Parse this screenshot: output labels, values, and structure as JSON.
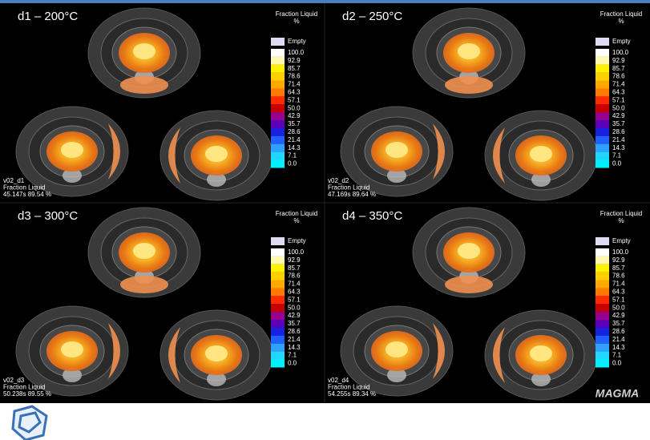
{
  "panels": [
    {
      "title": "d1 – 200°C",
      "legend_title": [
        "Fraction Liquid",
        "%"
      ],
      "scale": [
        "Empty",
        "100.0",
        "92.9",
        "85.7",
        "78.6",
        "71.4",
        "64.3",
        "57.1",
        "50.0",
        "42.9",
        "35.7",
        "28.6",
        "21.4",
        "14.3",
        "7.1",
        "0.0"
      ],
      "info": [
        "v02_d1",
        "Fraction Liquid",
        "45.147s 89.54 %"
      ]
    },
    {
      "title": "d2 – 250°C",
      "legend_title": [
        "Fraction Liquid",
        "%"
      ],
      "scale": [
        "Empty",
        "100.0",
        "92.9",
        "85.7",
        "78.6",
        "71.4",
        "64.3",
        "57.1",
        "50.0",
        "42.9",
        "35.7",
        "28.6",
        "21.4",
        "14.3",
        "7.1",
        "0.0"
      ],
      "info": [
        "v02_d2",
        "Fraction Liquid",
        "47.169s 89.64 %"
      ]
    },
    {
      "title": "d3 – 300°C",
      "legend_title": [
        "Fraction Liquid",
        "%"
      ],
      "scale": [
        "Empty",
        "100.0",
        "92.9",
        "85.7",
        "78.6",
        "71.4",
        "64.3",
        "57.1",
        "50.0",
        "42.9",
        "35.7",
        "28.6",
        "21.4",
        "14.3",
        "7.1",
        "0.0"
      ],
      "info": [
        "v02_d3",
        "Fraction Liquid",
        "50.238s 89.55 %"
      ]
    },
    {
      "title": "d4 – 350°C",
      "legend_title": [
        "Fraction Liquid",
        "%"
      ],
      "scale": [
        "Empty",
        "100.0",
        "92.9",
        "85.7",
        "78.6",
        "71.4",
        "64.3",
        "57.1",
        "50.0",
        "42.9",
        "35.7",
        "28.6",
        "21.4",
        "14.3",
        "7.1",
        "0.0"
      ],
      "info": [
        "v02_d4",
        "Fraction Liquid",
        "54.255s 89.34 %"
      ]
    }
  ],
  "logo": "MAGMA"
}
